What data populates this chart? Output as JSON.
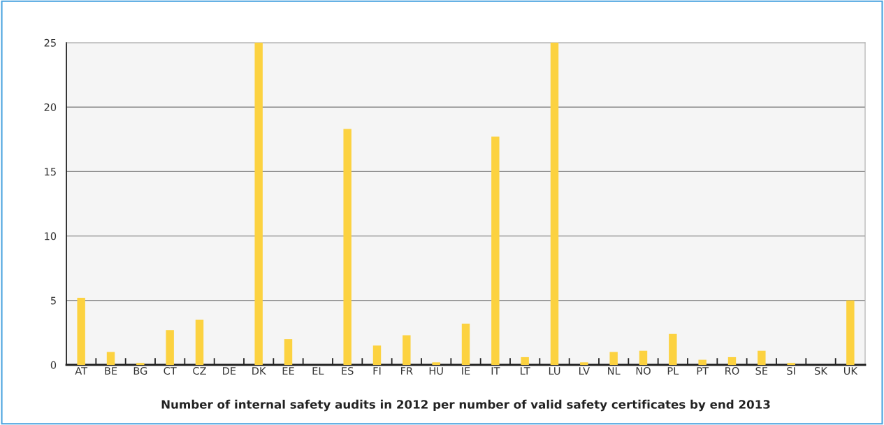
{
  "chart_data": {
    "type": "bar",
    "title": "Number of internal safety audits in 2012 per number of valid safety certificates by end 2013",
    "categories": [
      "AT",
      "BE",
      "BG",
      "CT",
      "CZ",
      "DE",
      "DK",
      "EE",
      "EL",
      "ES",
      "FI",
      "FR",
      "HU",
      "IE",
      "IT",
      "LT",
      "LU",
      "LV",
      "NL",
      "NO",
      "PL",
      "PT",
      "RO",
      "SE",
      "SI",
      "SK",
      "UK"
    ],
    "values": [
      5.2,
      1.0,
      0.15,
      2.7,
      3.5,
      0,
      25,
      2.0,
      0,
      18.3,
      1.5,
      2.3,
      0.2,
      3.2,
      17.7,
      0.6,
      25,
      0.2,
      1.0,
      1.1,
      2.4,
      0.4,
      0.6,
      1.1,
      0.15,
      0,
      5.0
    ],
    "color": "#fcd240",
    "ylim": [
      0,
      25
    ],
    "yticks": [
      0,
      5,
      10,
      15,
      20,
      25
    ],
    "grid": "y"
  }
}
